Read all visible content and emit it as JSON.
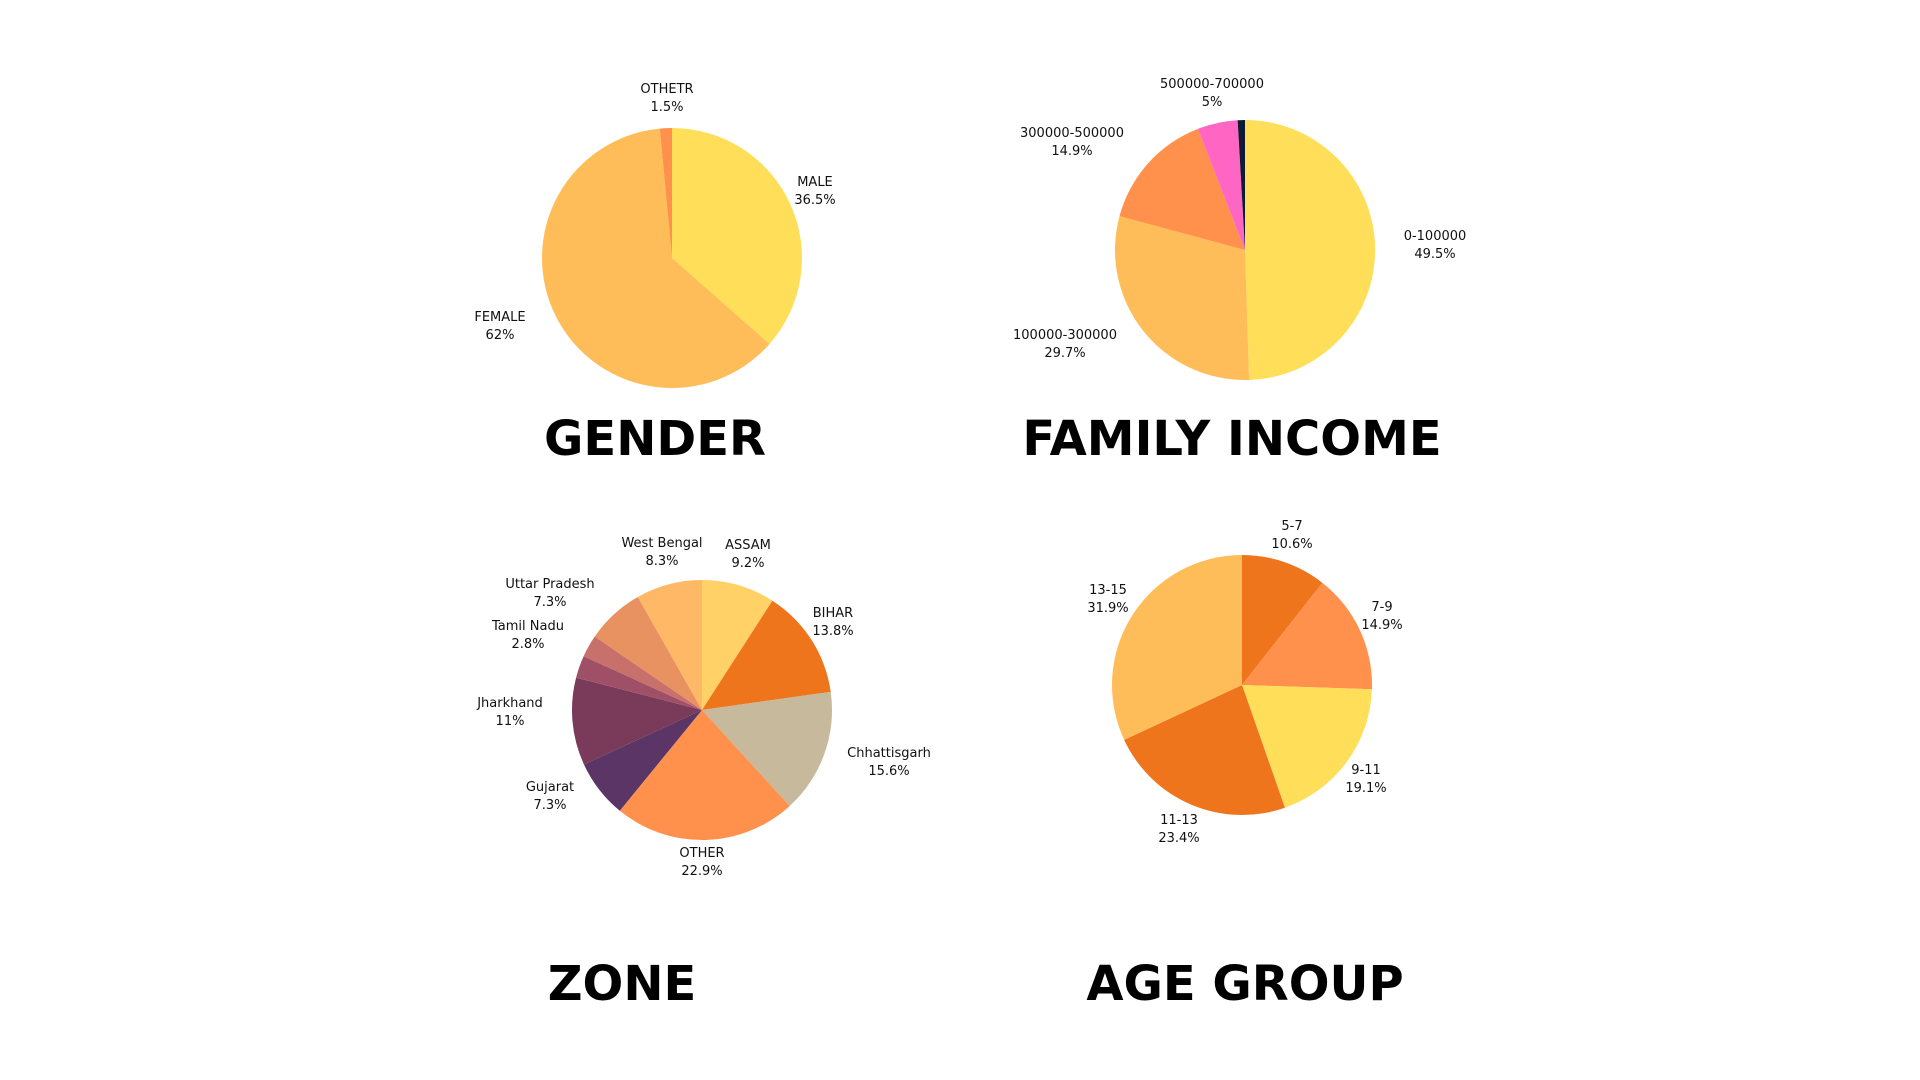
{
  "chart_data": [
    {
      "type": "pie",
      "title": "GENDER",
      "slices": [
        {
          "label": "MALE",
          "value_text": "36.5%",
          "value": 36.5,
          "color": "#FFDE59"
        },
        {
          "label": "FEMALE",
          "value_text": "62%",
          "value": 62,
          "color": "#FFBD59"
        },
        {
          "label": "OTHETR",
          "value_text": "1.5%",
          "value": 1.5,
          "color": "#FF914D"
        }
      ]
    },
    {
      "type": "pie",
      "title": "FAMILY INCOME",
      "slices": [
        {
          "label": "0-100000",
          "value_text": "49.5%",
          "value": 49.5,
          "color": "#FFDE59"
        },
        {
          "label": "100000-300000",
          "value_text": "29.7%",
          "value": 29.7,
          "color": "#FFBD59"
        },
        {
          "label": "300000-500000",
          "value_text": "14.9%",
          "value": 14.9,
          "color": "#FF914D"
        },
        {
          "label": "500000-700000",
          "value_text": "5%",
          "value": 5,
          "color": "#FF66C4"
        },
        {
          "label": "",
          "value_text": "",
          "value": 0.9,
          "color": "#0F1B33"
        }
      ]
    },
    {
      "type": "pie",
      "title": "ZONE",
      "slices": [
        {
          "label": "ASSAM",
          "value_text": "9.2%",
          "value": 9.2,
          "color": "#FFD166"
        },
        {
          "label": "BIHAR",
          "value_text": "13.8%",
          "value": 13.8,
          "color": "#EE751C"
        },
        {
          "label": "Chhattisgarh",
          "value_text": "15.6%",
          "value": 15.6,
          "color": "#C7B99B"
        },
        {
          "label": "OTHER",
          "value_text": "22.9%",
          "value": 22.9,
          "color": "#FF914D"
        },
        {
          "label": "Gujarat",
          "value_text": "7.3%",
          "value": 7.3,
          "color": "#5A3566"
        },
        {
          "label": "Jharkhand",
          "value_text": "11%",
          "value": 11,
          "color": "#7A3B5A"
        },
        {
          "label": "Tamil Nadu",
          "value_text": "2.8%",
          "value": 2.8,
          "color": "#A05066"
        },
        {
          "label": "",
          "value_text": "",
          "value": 2.8,
          "color": "#C8706B"
        },
        {
          "label": "Uttar Pradesh",
          "value_text": "7.3%",
          "value": 7.3,
          "color": "#E89161"
        },
        {
          "label": "West Bengal",
          "value_text": "8.3%",
          "value": 8.3,
          "color": "#FFB866"
        }
      ]
    },
    {
      "type": "pie",
      "title": "AGE GROUP",
      "slices": [
        {
          "label": "5-7",
          "value_text": "10.6%",
          "value": 10.6,
          "color": "#EE751C"
        },
        {
          "label": "7-9",
          "value_text": "14.9%",
          "value": 14.9,
          "color": "#FF914D"
        },
        {
          "label": "9-11",
          "value_text": "19.1%",
          "value": 19.1,
          "color": "#FFDE59"
        },
        {
          "label": "11-13",
          "value_text": "23.4%",
          "value": 23.4,
          "color": "#EE751C"
        },
        {
          "label": "13-15",
          "value_text": "31.9%",
          "value": 31.9,
          "color": "#FFBD59"
        }
      ]
    }
  ]
}
